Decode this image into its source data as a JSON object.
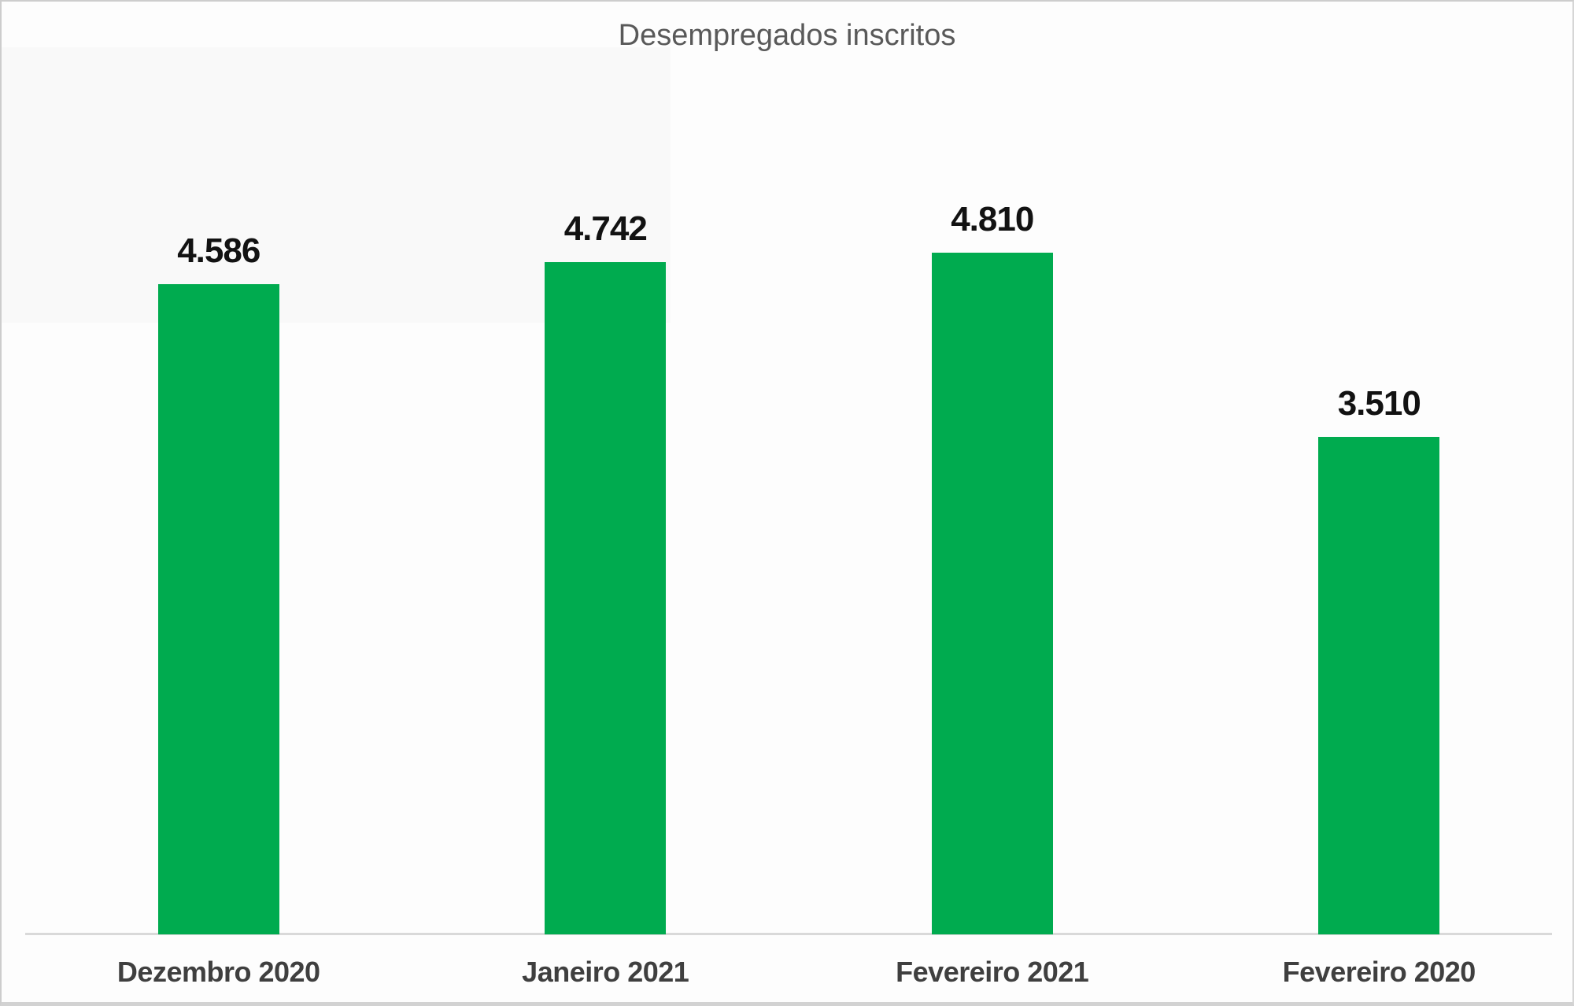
{
  "chart_data": {
    "type": "bar",
    "title": "Desempregados inscritos",
    "categories": [
      "Dezembro 2020",
      "Janeiro 2021",
      "Fevereiro 2021",
      "Fevereiro 2020"
    ],
    "values": [
      4586,
      4742,
      4810,
      3510
    ],
    "value_labels": [
      "4.586",
      "4.742",
      "4.810",
      "3.510"
    ],
    "xlabel": "",
    "ylabel": "",
    "baseline": 0,
    "grid": false,
    "y_axis_visible": false,
    "legend_position": "none",
    "data_labels_position": "above-bars",
    "colors": {
      "bar": "#00ab4f",
      "title": "#595959",
      "data_label": "#121212",
      "category_label": "#3f3f3f",
      "axis_line": "#d9d9d9",
      "background": "#fdfdfd",
      "frame_border": "#cdcdcd"
    }
  }
}
